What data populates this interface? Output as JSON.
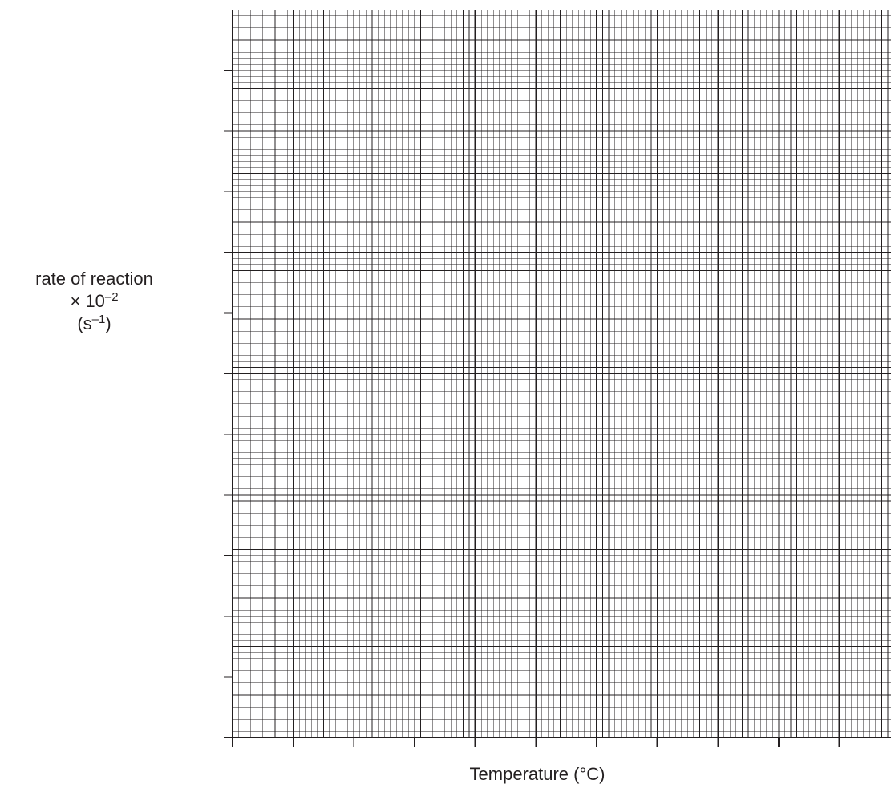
{
  "chart_data": {
    "type": "scatter",
    "title": "",
    "xlabel": "Temperature (°C)",
    "ylabel": {
      "line1": "rate of reaction",
      "line2_base": "× 10",
      "line2_exp": "–2",
      "line3_pre": "(s",
      "line3_exp": "–1",
      "line3_post": ")"
    },
    "x_tick_labels": [],
    "y_tick_labels": [],
    "series": [],
    "grid": true,
    "colors": {
      "major": "#231f20",
      "minor": "#231f20",
      "background": "#ffffff"
    }
  }
}
